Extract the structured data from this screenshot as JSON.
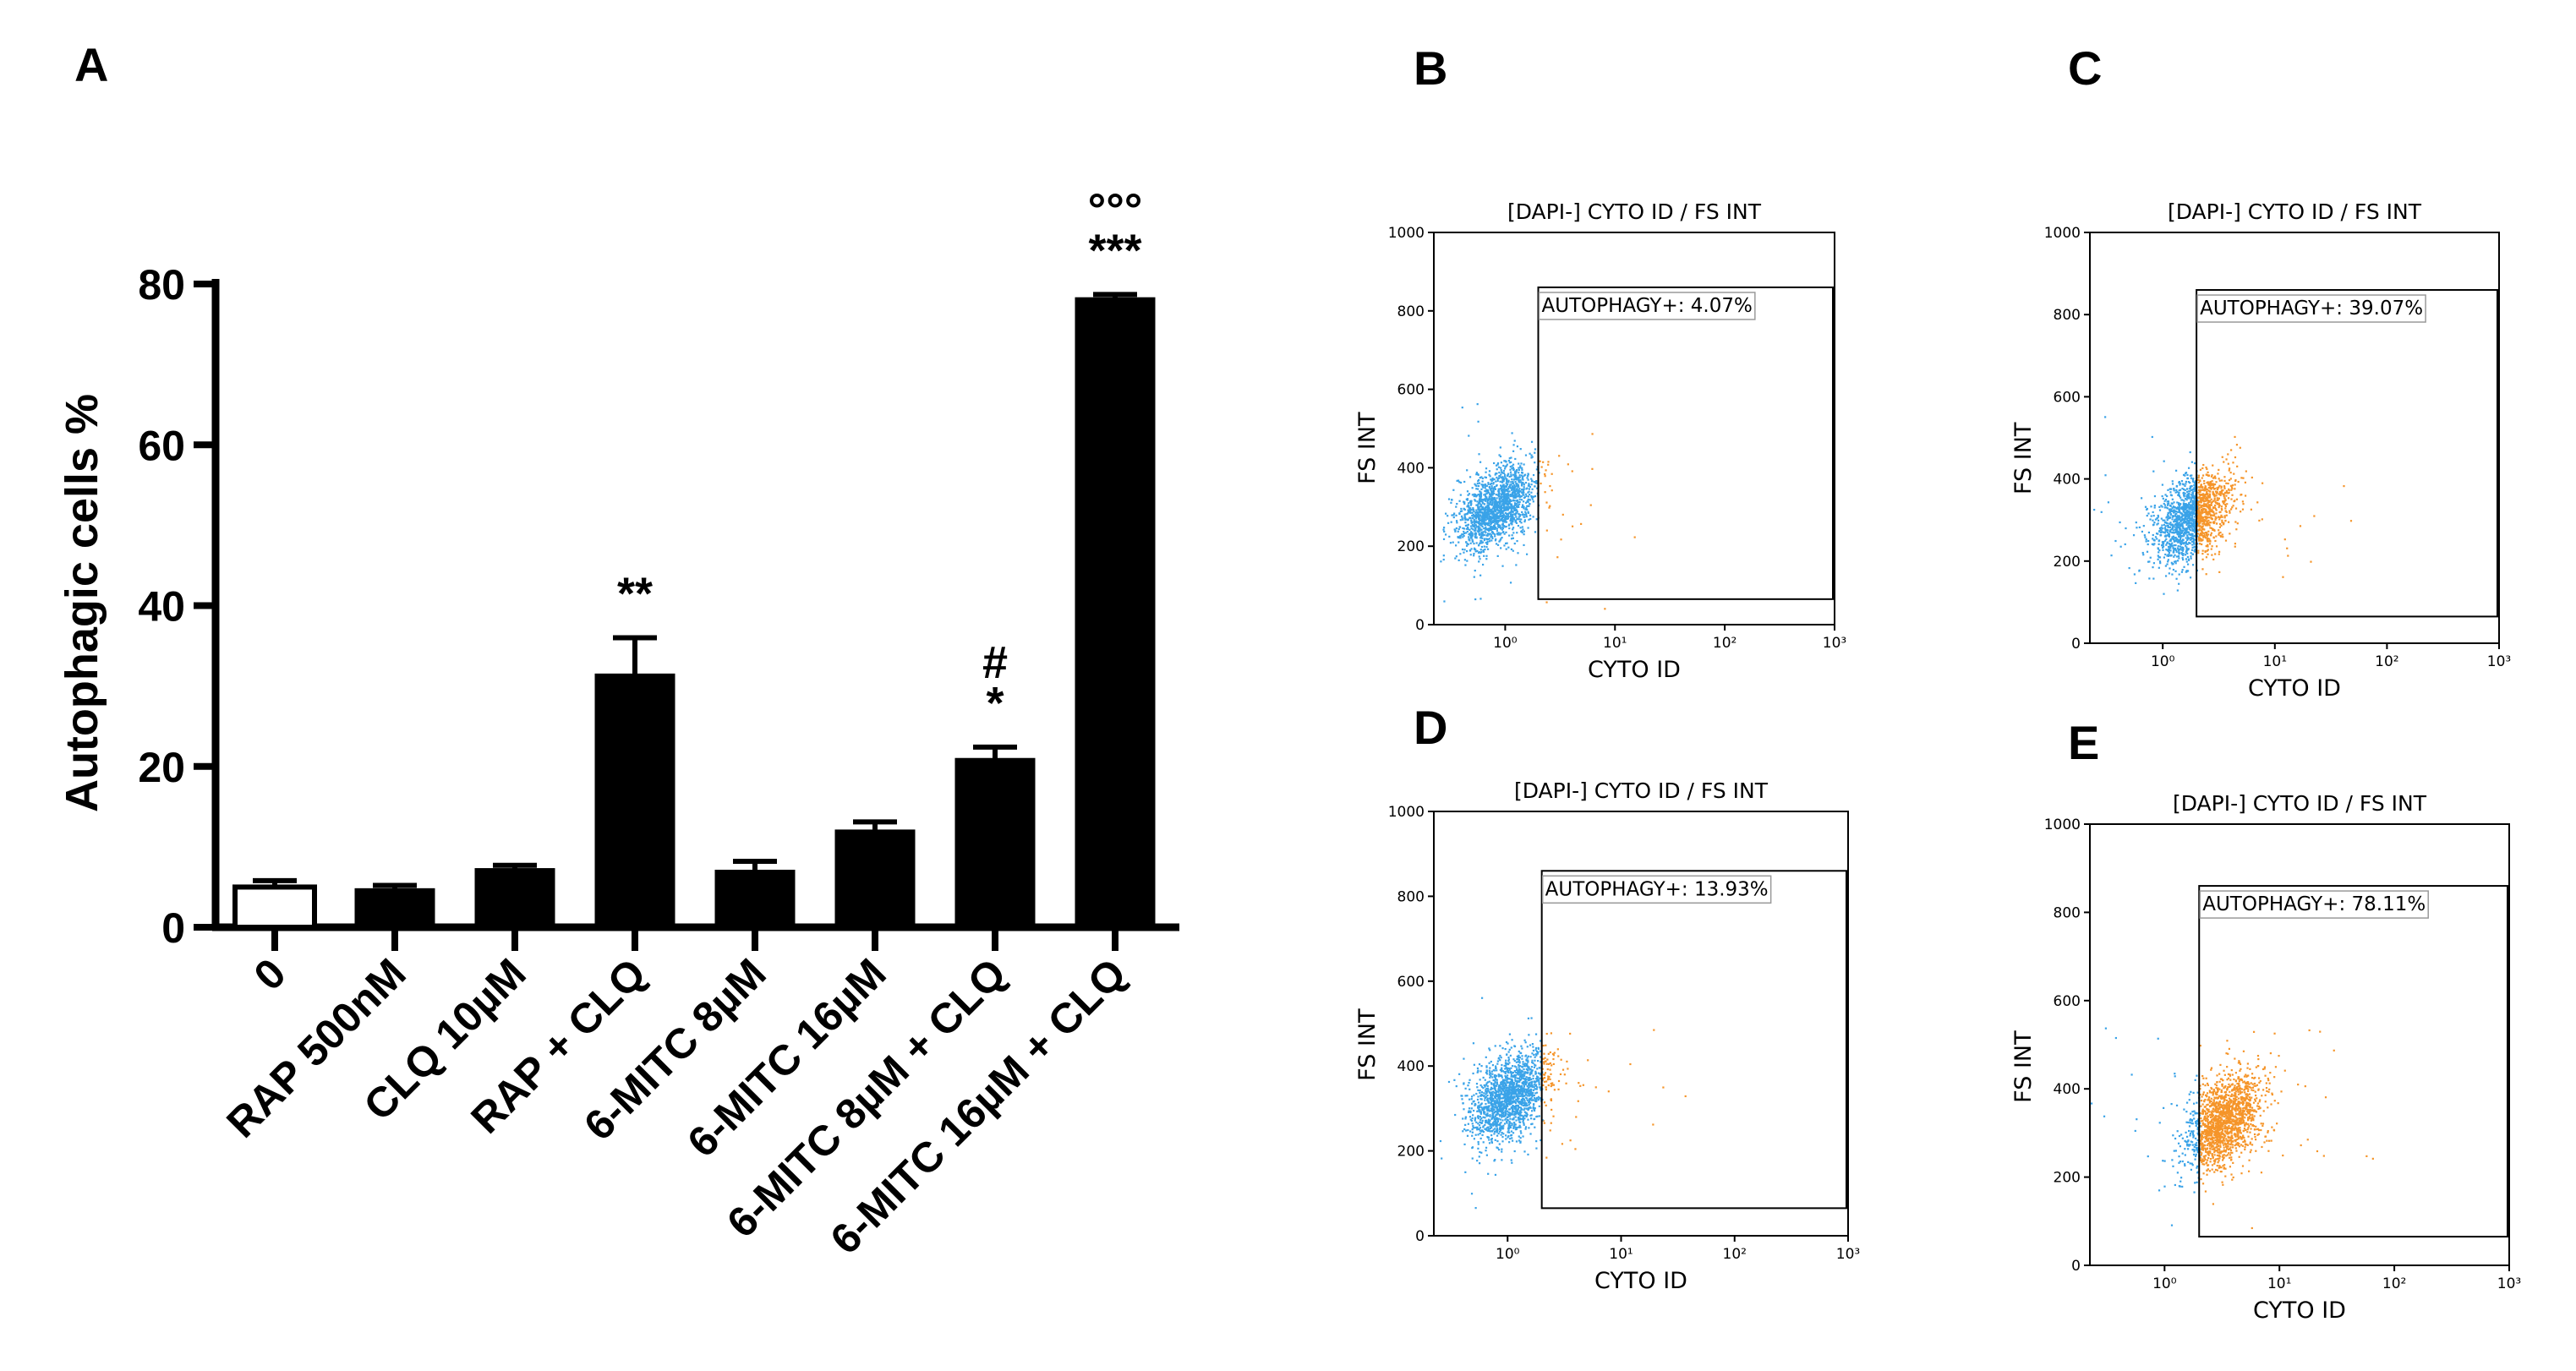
{
  "panel_labels": [
    "A",
    "B",
    "C",
    "D",
    "E"
  ],
  "colors": {
    "bar": "#000000",
    "control_bar": "#ffffff",
    "negative": "#3aa3e8",
    "positive": "#f5952a",
    "axis": "#000000"
  },
  "chart_data": [
    {
      "panel": "A",
      "type": "bar",
      "title": "",
      "xlabel": "",
      "ylabel": "Autophagic cells %",
      "ylim": [
        0,
        80
      ],
      "yticks": [
        0,
        20,
        40,
        60,
        80
      ],
      "categories": [
        "0",
        "RAP 500nM",
        "CLQ 10µM",
        "RAP + CLQ",
        "6-MITC  8µM",
        "6-MITC  16µM",
        "6-MITC  8µM + CLQ",
        "6-MITC  16µM + CLQ"
      ],
      "values": [
        5,
        4.8,
        7.3,
        31.5,
        7.1,
        12.1,
        21,
        78.3
      ],
      "errors": [
        0.8,
        0.4,
        0.4,
        4.5,
        1.1,
        1.0,
        1.4,
        0.4
      ],
      "significance": [
        "",
        "",
        "",
        "**",
        "",
        "",
        "#\n*",
        "°°°\n***"
      ]
    },
    {
      "panel": "B",
      "type": "scatter",
      "title": "[DAPI-] CYTO ID / FS INT",
      "xlabel": "CYTO ID",
      "ylabel": "FS INT",
      "xscale": "log",
      "xticks": [
        "10⁰",
        "10¹",
        "10²",
        "10³"
      ],
      "ylim": [
        0,
        1000
      ],
      "yticks": [
        0,
        200,
        400,
        600,
        800,
        1000
      ],
      "gate_label": "AUTOPHAGY+: 4.07%",
      "gate_percent": 4.07,
      "cloud_center": {
        "x": 0.8,
        "y": 300
      }
    },
    {
      "panel": "C",
      "type": "scatter",
      "title": "[DAPI-] CYTO ID / FS INT",
      "xlabel": "CYTO ID",
      "ylabel": "FS INT",
      "xscale": "log",
      "xticks": [
        "10⁰",
        "10¹",
        "10²",
        "10³"
      ],
      "ylim": [
        0,
        1000
      ],
      "yticks": [
        0,
        200,
        400,
        600,
        800,
        1000
      ],
      "gate_label": "AUTOPHAGY+: 39.07%",
      "gate_percent": 39.07,
      "cloud_center": {
        "x": 1.8,
        "y": 310
      }
    },
    {
      "panel": "D",
      "type": "scatter",
      "title": "[DAPI-] CYTO ID / FS INT",
      "xlabel": "CYTO ID",
      "ylabel": "FS INT",
      "xscale": "log",
      "xticks": [
        "10⁰",
        "10¹",
        "10²",
        "10³"
      ],
      "ylim": [
        0,
        1000
      ],
      "yticks": [
        0,
        200,
        400,
        600,
        800,
        1000
      ],
      "gate_label": "AUTOPHAGY+: 13.93%",
      "gate_percent": 13.93,
      "cloud_center": {
        "x": 1.0,
        "y": 330
      }
    },
    {
      "panel": "E",
      "type": "scatter",
      "title": "[DAPI-] CYTO ID / FS INT",
      "xlabel": "CYTO ID",
      "ylabel": "FS INT",
      "xscale": "log",
      "xticks": [
        "10⁰",
        "10¹",
        "10²",
        "10³"
      ],
      "ylim": [
        0,
        1000
      ],
      "yticks": [
        0,
        200,
        400,
        600,
        800,
        1000
      ],
      "gate_label": "AUTOPHAGY+: 78.11%",
      "gate_percent": 78.11,
      "cloud_center": {
        "x": 3.2,
        "y": 330
      }
    }
  ]
}
